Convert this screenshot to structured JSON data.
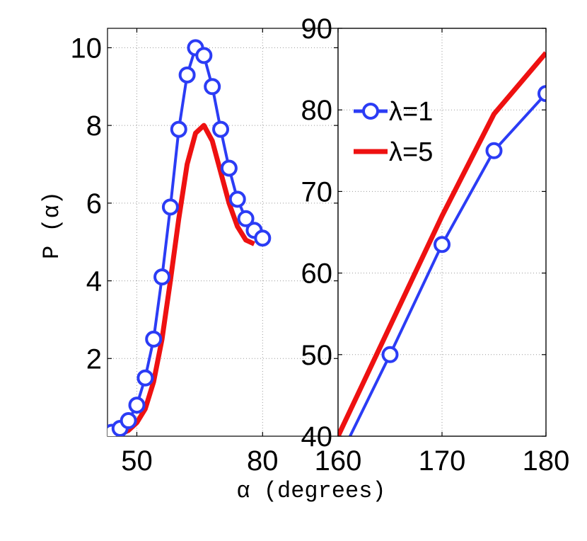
{
  "chart_data": [
    {
      "type": "line",
      "panel": "left",
      "xlabel": "α (degrees)",
      "ylabel": "P (α)",
      "xlim": [
        43,
        98
      ],
      "ylim": [
        0,
        10.5
      ],
      "xticks": [
        50,
        80
      ],
      "yticks": [
        2,
        4,
        6,
        8,
        10
      ],
      "grid": true,
      "series": [
        {
          "name": "λ=1",
          "color": "#2b3cf5",
          "marker": "circle",
          "x": [
            44,
            46,
            48,
            50,
            52,
            54,
            56,
            58,
            60,
            62,
            64,
            66,
            68,
            70,
            72,
            74,
            76,
            78,
            80
          ],
          "y": [
            0.1,
            0.2,
            0.4,
            0.8,
            1.5,
            2.5,
            4.1,
            5.9,
            7.9,
            9.3,
            10.0,
            9.8,
            9.0,
            7.9,
            6.9,
            6.1,
            5.6,
            5.3,
            5.1
          ]
        },
        {
          "name": "λ=5",
          "color": "#ee1111",
          "marker": "none",
          "x": [
            46,
            48,
            50,
            52,
            54,
            56,
            58,
            60,
            62,
            64,
            66,
            68,
            70,
            72,
            74,
            76,
            78
          ],
          "y": [
            0.05,
            0.15,
            0.35,
            0.7,
            1.4,
            2.5,
            4.0,
            5.6,
            7.0,
            7.8,
            8.0,
            7.6,
            6.8,
            6.0,
            5.4,
            5.05,
            4.95
          ]
        }
      ]
    },
    {
      "type": "line",
      "panel": "right",
      "xlim": [
        160,
        180
      ],
      "ylim": [
        40,
        90
      ],
      "xticks": [
        160,
        170,
        180
      ],
      "yticks": [
        40,
        50,
        60,
        70,
        80,
        90
      ],
      "grid": true,
      "legend_position": "top-left",
      "legend": [
        "λ=1",
        "λ=5"
      ],
      "series": [
        {
          "name": "λ=1",
          "color": "#2b3cf5",
          "marker": "circle",
          "x": [
            160,
            165,
            170,
            175,
            180
          ],
          "y": [
            37,
            50,
            63.5,
            75,
            82
          ]
        },
        {
          "name": "λ=5",
          "color": "#ee1111",
          "marker": "none",
          "x": [
            160,
            165,
            170,
            175,
            180
          ],
          "y": [
            40,
            53.5,
            67,
            79.5,
            87
          ]
        }
      ]
    }
  ]
}
